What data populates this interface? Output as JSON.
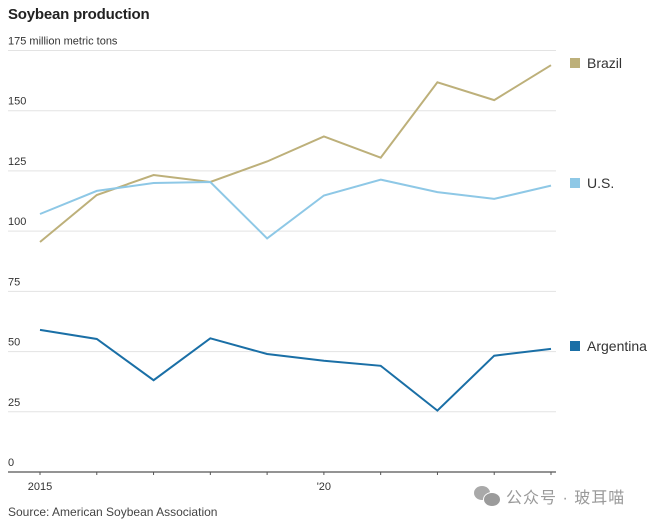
{
  "chart_data": {
    "type": "line",
    "title": "Soybean production",
    "ylabel": "million metric tons",
    "xlabel": "",
    "x": [
      2015,
      2016,
      2017,
      2018,
      2019,
      2020,
      2021,
      2022,
      2023,
      2024
    ],
    "xtick_values": [
      2015,
      2020
    ],
    "xtick_labels": [
      "2015",
      "'20"
    ],
    "yticks": [
      0,
      25,
      50,
      75,
      100,
      125,
      150,
      175
    ],
    "ytick_labels": [
      "0",
      "25",
      "50",
      "75",
      "100",
      "125",
      "150",
      "175 million metric tons"
    ],
    "ylim": [
      0,
      175
    ],
    "xlim": [
      2015,
      2024
    ],
    "grid": true,
    "legend_placement": "right, inline at line ends",
    "series": [
      {
        "name": "Brazil",
        "color": "#bdb07a",
        "values": [
          95.5,
          115.0,
          123.3,
          120.4,
          128.9,
          139.3,
          130.5,
          161.8,
          154.4,
          168.9
        ]
      },
      {
        "name": "U.S.",
        "color": "#8ec8e6",
        "values": [
          107.1,
          116.7,
          120.0,
          120.4,
          97.0,
          114.8,
          121.4,
          116.2,
          113.4,
          118.9
        ]
      },
      {
        "name": "Argentina",
        "color": "#1a6fa6",
        "values": [
          59.0,
          55.2,
          38.1,
          55.5,
          49.0,
          46.2,
          44.1,
          25.5,
          48.3,
          51.1
        ]
      }
    ],
    "source": "Source: American Soybean Association"
  },
  "watermark": {
    "icon": "wechat-icon",
    "text": "公众号 · 玻耳喵"
  }
}
